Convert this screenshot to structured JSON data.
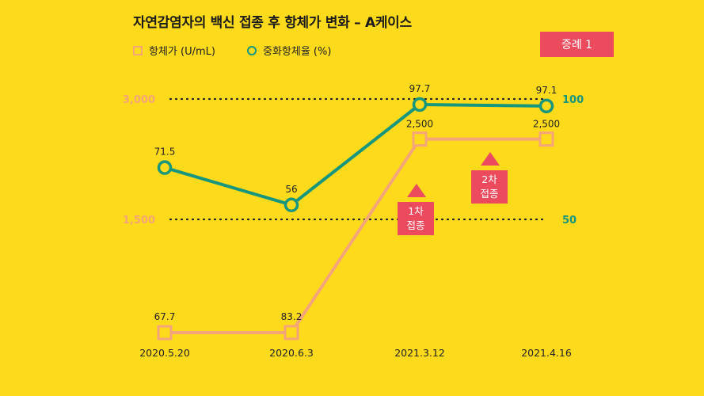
{
  "title": "자연감염자의 백신 접종 후 항체가 변화 – A케이스",
  "case_label": "증례 1",
  "colors": {
    "background": "#FDDA1B",
    "antibody": "#F4A57A",
    "neutralizing": "#17967E",
    "badge": "#EC4B5E"
  },
  "chart_data": {
    "type": "line",
    "categories": [
      "2020.5.20",
      "2020.6.3",
      "2021.3.12",
      "2021.4.16"
    ],
    "series": [
      {
        "name": "항체가 (U/mL)",
        "axis": "left",
        "marker": "square",
        "values": [
          67.7,
          83.2,
          2500,
          2500
        ],
        "labels": [
          "67.7",
          "83.2",
          "2,500",
          "2,500"
        ]
      },
      {
        "name": "중화항체율 (%)",
        "axis": "right",
        "marker": "circle",
        "values": [
          71.5,
          56,
          97.7,
          97.1
        ],
        "labels": [
          "71.5",
          "56",
          "97.7",
          "97.1"
        ]
      }
    ],
    "left_axis": {
      "ticks": [
        1500,
        3000
      ],
      "tick_labels": [
        "1,500",
        "3,000"
      ],
      "range": [
        0,
        3000
      ]
    },
    "right_axis": {
      "ticks": [
        50,
        100
      ],
      "tick_labels": [
        "50",
        "100"
      ],
      "range": [
        0,
        100
      ]
    },
    "grid": "dotted at tick values",
    "legend_position": "top-left",
    "annotations": [
      {
        "lines": [
          "1차",
          "접종"
        ],
        "between": [
          "2020.6.3",
          "2021.3.12"
        ]
      },
      {
        "lines": [
          "2차",
          "접종"
        ],
        "between": [
          "2021.3.12",
          "2021.4.16"
        ]
      }
    ]
  }
}
